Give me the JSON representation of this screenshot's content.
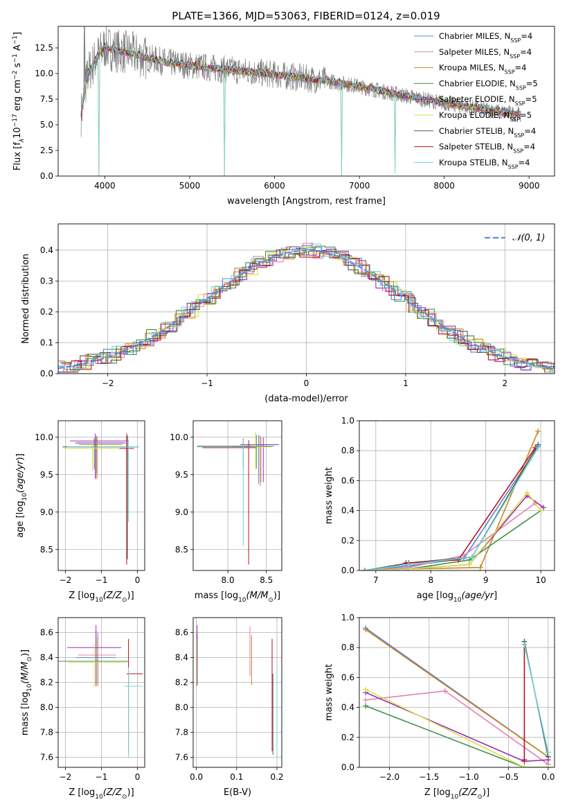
{
  "title": "PLATE=1366, MJD=53063, FIBERID=0124, z=0.019",
  "models": [
    {
      "name": "Chabrier MILES",
      "nssp": "4",
      "color": "#5b7fd6"
    },
    {
      "name": "Salpeter MILES",
      "nssp": "4",
      "color": "#e57fb6"
    },
    {
      "name": "Kroupa MILES",
      "nssp": "4",
      "color": "#c8841d"
    },
    {
      "name": "Chabrier ELODIE",
      "nssp": "5",
      "color": "#3f8f47"
    },
    {
      "name": "Salpeter ELODIE",
      "nssp": "5",
      "color": "#9b2fb5"
    },
    {
      "name": "Kroupa ELODIE",
      "nssp": "5",
      "color": "#d6e04a"
    },
    {
      "name": "Chabrier STELIB",
      "nssp": "4",
      "color": "#555555"
    },
    {
      "name": "Salpeter STELIB",
      "nssp": "4",
      "color": "#b5121b"
    },
    {
      "name": "Kroupa STELIB",
      "nssp": "4",
      "color": "#6fd4d8"
    }
  ],
  "legend_suffix": "N",
  "legend_sub": "SSP",
  "chart_data": [
    {
      "id": "spectrum",
      "type": "line",
      "xlabel": "wavelength [Angstrom, rest frame]",
      "ylabel": "Flux [f",
      "xlim": [
        3450,
        9300
      ],
      "ylim": [
        0,
        14.6
      ],
      "xticks": [
        4000,
        5000,
        6000,
        7000,
        8000,
        9000
      ],
      "yticks": [
        0.0,
        2.5,
        5.0,
        7.5,
        10.0,
        12.5
      ],
      "data_color": "#7f7f7f",
      "model_curve": {
        "x": [
          3720,
          3800,
          3900,
          4000,
          4100,
          4300,
          4500,
          4800,
          5100,
          5400,
          5700,
          6000,
          6300,
          6600,
          6900,
          7200,
          7500,
          7800,
          8100,
          8400,
          8700,
          8900
        ],
        "y": [
          6.0,
          10.0,
          11.5,
          12.6,
          12.3,
          12.0,
          11.5,
          11.0,
          10.7,
          10.4,
          10.2,
          9.9,
          9.6,
          9.3,
          8.9,
          8.4,
          7.9,
          7.4,
          7.0,
          6.6,
          6.2,
          6.0
        ]
      },
      "absorption_dips": [
        {
          "x": 3933,
          "y": 0.0
        },
        {
          "x": 5410,
          "y": 0.0
        },
        {
          "x": 6790,
          "y": 0.0
        },
        {
          "x": 7420,
          "y": 0.3
        }
      ]
    },
    {
      "id": "residuals",
      "type": "line",
      "xlabel": "(data-model)/error",
      "ylabel": "Normed distribution",
      "xlim": [
        -2.5,
        2.5
      ],
      "ylim": [
        0,
        0.485
      ],
      "xticks": [
        -2,
        -1,
        0,
        1,
        2
      ],
      "yticks": [
        0.0,
        0.1,
        0.2,
        0.3,
        0.4
      ],
      "grid": true,
      "legend_label": "𝒩(0, 1)",
      "legend_position": "top-right",
      "gaussian": {
        "mean": 0,
        "sigma": 1,
        "color": "#5b8ed6"
      },
      "bin_width": 0.1
    },
    {
      "id": "age-vs-Z",
      "type": "errorbar",
      "xlabel": "Z [log",
      "xlabel_tail": "(Z/Z",
      "ylabel": "age  [log",
      "xlim": [
        -2.2,
        0.2
      ],
      "ylim": [
        8.22,
        10.22
      ],
      "xticks": [
        -2,
        -1,
        0
      ],
      "yticks": [
        8.5,
        9.0,
        9.5,
        10.0
      ],
      "grid": true,
      "points": [
        {
          "model": 0,
          "x": -1.13,
          "y": 9.92,
          "xerr": [
            0.6,
            0.8
          ],
          "yerr": [
            0.4,
            0.1
          ]
        },
        {
          "model": 1,
          "x": -1.15,
          "y": 9.93,
          "xerr": [
            0.55,
            0.8
          ],
          "yerr": [
            0.5,
            0.08
          ]
        },
        {
          "model": 2,
          "x": -1.12,
          "y": 9.9,
          "xerr": [
            0.5,
            0.7
          ],
          "yerr": [
            0.45,
            0.1
          ]
        },
        {
          "model": 3,
          "x": -1.2,
          "y": 9.87,
          "xerr": [
            0.8,
            0.9
          ],
          "yerr": [
            0.3,
            0.12
          ]
        },
        {
          "model": 4,
          "x": -1.17,
          "y": 9.95,
          "xerr": [
            0.7,
            0.9
          ],
          "yerr": [
            0.5,
            0.1
          ]
        },
        {
          "model": 5,
          "x": -1.25,
          "y": 9.85,
          "xerr": [
            0.8,
            0.9
          ],
          "yerr": [
            0.3,
            0.1
          ]
        },
        {
          "model": 6,
          "x": -0.28,
          "y": 9.87,
          "xerr": [
            1.8,
            0.3
          ],
          "yerr": [
            1.5,
            0.15
          ]
        },
        {
          "model": 7,
          "x": -0.3,
          "y": 9.85,
          "xerr": [
            0.2,
            0.2
          ],
          "yerr": [
            1.55,
            0.2
          ]
        },
        {
          "model": 8,
          "x": -0.25,
          "y": 9.87,
          "xerr": [
            1.7,
            0.3
          ],
          "yerr": [
            1.0,
            0.1
          ]
        }
      ]
    },
    {
      "id": "age-vs-mass",
      "type": "errorbar",
      "xlabel": "mass [log",
      "xlabel_tail": "(M/M",
      "xlim": [
        7.55,
        8.7
      ],
      "ylim": [
        8.22,
        10.22
      ],
      "xticks": [
        8.0,
        8.5
      ],
      "yticks": [
        8.5,
        9.0,
        9.5,
        10.0
      ],
      "grid": true,
      "points": [
        {
          "model": 0,
          "x": 8.4,
          "y": 9.88,
          "xerr": [
            0.2,
            0.2
          ],
          "yerr": [
            0.5,
            0.15
          ]
        },
        {
          "model": 1,
          "x": 8.43,
          "y": 9.9,
          "xerr": [
            0.25,
            0.2
          ],
          "yerr": [
            0.5,
            0.1
          ]
        },
        {
          "model": 2,
          "x": 8.42,
          "y": 9.9,
          "xerr": [
            0.2,
            0.2
          ],
          "yerr": [
            0.55,
            0.12
          ]
        },
        {
          "model": 3,
          "x": 8.37,
          "y": 9.88,
          "xerr": [
            0.3,
            0.2
          ],
          "yerr": [
            0.3,
            0.15
          ]
        },
        {
          "model": 4,
          "x": 8.46,
          "y": 9.9,
          "xerr": [
            0.3,
            0.2
          ],
          "yerr": [
            0.5,
            0.1
          ]
        },
        {
          "model": 5,
          "x": 8.36,
          "y": 9.87,
          "xerr": [
            0.3,
            0.2
          ],
          "yerr": [
            0.3,
            0.2
          ]
        },
        {
          "model": 6,
          "x": 8.2,
          "y": 9.88,
          "xerr": [
            0.6,
            0.1
          ],
          "yerr": [
            0.3,
            0.1
          ]
        },
        {
          "model": 7,
          "x": 8.27,
          "y": 9.86,
          "xerr": [
            0.6,
            0.1
          ],
          "yerr": [
            1.56,
            0.1
          ]
        },
        {
          "model": 8,
          "x": 8.2,
          "y": 9.87,
          "xerr": [
            0.6,
            0.2
          ],
          "yerr": [
            1.32,
            0.1
          ]
        }
      ]
    },
    {
      "id": "weight-vs-age",
      "type": "line",
      "xlabel": "age  [log",
      "ylabel": "mass weight",
      "xlim": [
        6.7,
        10.25
      ],
      "ylim": [
        0,
        1
      ],
      "xticks": [
        7,
        8,
        9,
        10
      ],
      "yticks": [
        0.0,
        0.2,
        0.4,
        0.6,
        0.8,
        1.0
      ],
      "grid": true,
      "series": [
        {
          "model": 0,
          "x": [
            6.8,
            7.6,
            8.6,
            9.95
          ],
          "y": [
            0.0,
            0.03,
            0.08,
            0.83
          ]
        },
        {
          "model": 1,
          "x": [
            6.8,
            7.6,
            8.6,
            9.9
          ],
          "y": [
            0.0,
            0.02,
            0.1,
            0.45
          ]
        },
        {
          "model": 2,
          "x": [
            6.8,
            7.6,
            8.9,
            9.95
          ],
          "y": [
            0.0,
            0.01,
            0.02,
            0.93
          ]
        },
        {
          "model": 3,
          "x": [
            6.8,
            7.6,
            8.7,
            10.0
          ],
          "y": [
            0.0,
            0.01,
            0.07,
            0.4
          ]
        },
        {
          "model": 4,
          "x": [
            6.8,
            7.6,
            8.7,
            9.75,
            10.05
          ],
          "y": [
            0.0,
            0.01,
            0.04,
            0.5,
            0.42
          ]
        },
        {
          "model": 5,
          "x": [
            6.8,
            7.6,
            8.7,
            9.75,
            10.0
          ],
          "y": [
            0.0,
            0.01,
            0.04,
            0.52,
            0.4
          ]
        },
        {
          "model": 6,
          "x": [
            6.8,
            7.6,
            8.75,
            9.95
          ],
          "y": [
            0.0,
            0.05,
            0.09,
            0.84
          ]
        },
        {
          "model": 7,
          "x": [
            7.55,
            8.5,
            9.9
          ],
          "y": [
            0.05,
            0.07,
            0.82
          ]
        },
        {
          "model": 8,
          "x": [
            6.8,
            7.6,
            8.75,
            9.95
          ],
          "y": [
            0.0,
            0.04,
            0.09,
            0.82
          ]
        }
      ]
    },
    {
      "id": "mass-vs-Z",
      "type": "errorbar",
      "xlabel": "Z [log",
      "xlabel_tail": "(Z/Z",
      "ylabel": "mass [log",
      "xlim": [
        -2.2,
        0.2
      ],
      "ylim": [
        7.52,
        8.72
      ],
      "xticks": [
        -2,
        -1,
        0
      ],
      "yticks": [
        7.6,
        7.8,
        8.0,
        8.2,
        8.4,
        8.6
      ],
      "grid": true,
      "points": [
        {
          "model": 0,
          "x": -1.1,
          "y": 8.4,
          "xerr": [
            0.6,
            0.5
          ],
          "yerr": [
            0.2,
            0.2
          ]
        },
        {
          "model": 1,
          "x": -1.15,
          "y": 8.42,
          "xerr": [
            0.5,
            0.55
          ],
          "yerr": [
            0.25,
            0.2
          ]
        },
        {
          "model": 2,
          "x": -1.1,
          "y": 8.37,
          "xerr": [
            0.7,
            0.7
          ],
          "yerr": [
            0.2,
            0.2
          ]
        },
        {
          "model": 3,
          "x": -1.15,
          "y": 8.37,
          "xerr": [
            1.05,
            0.9
          ],
          "yerr": [
            0.2,
            0.2
          ]
        },
        {
          "model": 4,
          "x": -1.15,
          "y": 8.48,
          "xerr": [
            0.8,
            0.7
          ],
          "yerr": [
            0.3,
            0.18
          ]
        },
        {
          "model": 5,
          "x": -1.2,
          "y": 8.36,
          "xerr": [
            0.7,
            0.9
          ],
          "yerr": [
            0.2,
            0.15
          ]
        },
        {
          "model": 6,
          "x": -0.25,
          "y": 8.17,
          "xerr": [
            0.1,
            0.4
          ],
          "yerr": [
            0.55,
            0.1
          ]
        },
        {
          "model": 7,
          "x": -0.25,
          "y": 8.27,
          "xerr": [
            0.05,
            0.4
          ],
          "yerr": [
            0.62,
            0.28
          ]
        },
        {
          "model": 8,
          "x": -0.25,
          "y": 8.17,
          "xerr": [
            0.1,
            0.4
          ],
          "yerr": [
            0.57,
            0.15
          ]
        }
      ]
    },
    {
      "id": "mass-vs-ebv",
      "type": "errorbar",
      "xlabel": "E(B-V)",
      "xlim": [
        -0.008,
        0.212
      ],
      "ylim": [
        7.52,
        8.72
      ],
      "xticks": [
        0.0,
        0.1,
        0.2
      ],
      "yticks": [
        7.6,
        7.8,
        8.0,
        8.2,
        8.4,
        8.6
      ],
      "grid": true,
      "points": [
        {
          "model": 0,
          "x": 0.002,
          "y": 8.4,
          "yerr": [
            0.2,
            0.2
          ]
        },
        {
          "model": 1,
          "x": 0.133,
          "y": 8.43,
          "yerr": [
            0.18,
            0.22
          ]
        },
        {
          "model": 2,
          "x": 0.137,
          "y": 8.38,
          "yerr": [
            0.2,
            0.2
          ]
        },
        {
          "model": 3,
          "x": 0.001,
          "y": 8.37,
          "yerr": [
            0.2,
            0.2
          ]
        },
        {
          "model": 4,
          "x": 0.002,
          "y": 8.48,
          "yerr": [
            0.3,
            0.18
          ]
        },
        {
          "model": 5,
          "x": 0.0,
          "y": 8.36,
          "yerr": [
            0.2,
            0.2
          ]
        },
        {
          "model": 6,
          "x": 0.19,
          "y": 8.17,
          "yerr": [
            0.55,
            0.1
          ]
        },
        {
          "model": 7,
          "x": 0.188,
          "y": 8.27,
          "yerr": [
            0.62,
            0.28
          ]
        },
        {
          "model": 8,
          "x": 0.2,
          "y": 8.17,
          "yerr": [
            0.57,
            0.15
          ]
        }
      ]
    },
    {
      "id": "weight-vs-Z",
      "type": "line",
      "xlabel": "Z [log",
      "xlabel_tail": "(Z/Z",
      "ylabel": "mass weight",
      "xlim": [
        -2.38,
        0.08
      ],
      "ylim": [
        0,
        1
      ],
      "xticks": [
        -2.0,
        -1.5,
        -1.0,
        -0.5,
        0.0
      ],
      "yticks": [
        0.0,
        0.2,
        0.4,
        0.6,
        0.8,
        1.0
      ],
      "grid": true,
      "series": [
        {
          "model": 0,
          "x": [
            -2.3,
            0.0
          ],
          "y": [
            0.93,
            0.07
          ]
        },
        {
          "model": 1,
          "x": [
            -2.3,
            -1.3,
            0.0
          ],
          "y": [
            0.45,
            0.51,
            0.02
          ]
        },
        {
          "model": 2,
          "x": [
            -2.3,
            0.0
          ],
          "y": [
            0.92,
            0.07
          ]
        },
        {
          "model": 3,
          "x": [
            -2.3,
            -0.3,
            0.0
          ],
          "y": [
            0.41,
            0.0,
            0.0
          ]
        },
        {
          "model": 4,
          "x": [
            -2.3,
            -0.3,
            0.0
          ],
          "y": [
            0.5,
            0.04,
            0.05
          ]
        },
        {
          "model": 5,
          "x": [
            -2.3,
            -0.3,
            0.0
          ],
          "y": [
            0.52,
            0.0,
            0.0
          ]
        },
        {
          "model": 6,
          "x": [
            -0.3,
            0.0
          ],
          "y": [
            0.84,
            0.07
          ]
        },
        {
          "model": 7,
          "x": [
            -0.3,
            -0.3
          ],
          "y": [
            0.82,
            0.05
          ]
        },
        {
          "model": 8,
          "x": [
            -0.3,
            0.0
          ],
          "y": [
            0.82,
            0.1
          ]
        }
      ]
    }
  ]
}
